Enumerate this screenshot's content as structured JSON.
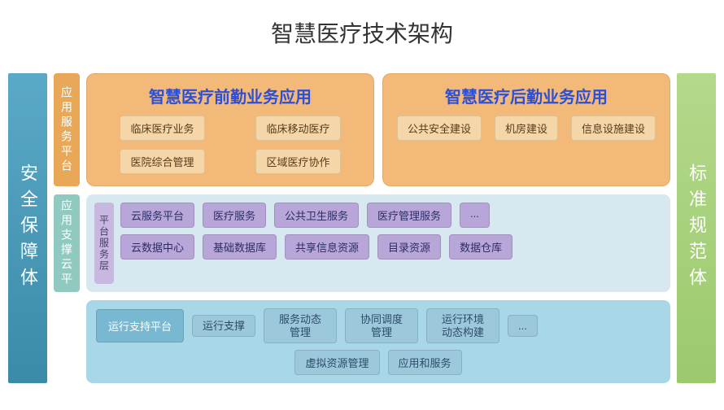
{
  "title": "智慧医疗技术架构",
  "colors": {
    "pillar_left_bg": "#4a96b5",
    "pillar_right_bg": "#a8d177",
    "tier1_label_bg": "#e8a858",
    "tier1_panel_bg": "#f2b978",
    "tier1_title_color": "#2b4fd8",
    "tier1_chip_bg": "#f5d6a8",
    "tier2_label_bg": "#8fc9c0",
    "tier2_body_bg": "#d8e8f0",
    "tier2_sublabel_bg": "#c8b8e0",
    "tier2_chip_bg": "#b8a6d8",
    "tier2_chip_text": "#2d2d66",
    "tier3_body_bg": "#a8d8e8",
    "tier3_lead_bg": "#78b8d0",
    "tier3_chip_bg": "#9cc8dc",
    "tier3_text": "#2d4a66"
  },
  "pillar_left": "安全保障体",
  "pillar_right": "标准规范体",
  "tier1": {
    "label": "应用服务平台",
    "left": {
      "title": "智慧医疗前勤业务应用",
      "chips": [
        "临床医疗业务",
        "临床移动医疗",
        "医院综合管理",
        "区域医疗协作"
      ]
    },
    "right": {
      "title": "智慧医疗后勤业务应用",
      "chips": [
        "公共安全建设",
        "机房建设",
        "信息设施建设"
      ]
    }
  },
  "tier2": {
    "label": "应用支撑云平",
    "sublabel": "平台服务层",
    "row1": [
      "云服务平台",
      "医疗服务",
      "公共卫生服务",
      "医疗管理服务",
      "..."
    ],
    "row2": [
      "云数据中心",
      "基础数据库",
      "共享信息资源",
      "目录资源",
      "数据仓库"
    ]
  },
  "tier3": {
    "row1_lead": "运行支持平台",
    "row1": [
      "运行支撑",
      "服务动态管理",
      "协同调度管理",
      "运行环境动态构建",
      "..."
    ],
    "row2": [
      "虚拟资源管理",
      "应用和服务"
    ]
  }
}
